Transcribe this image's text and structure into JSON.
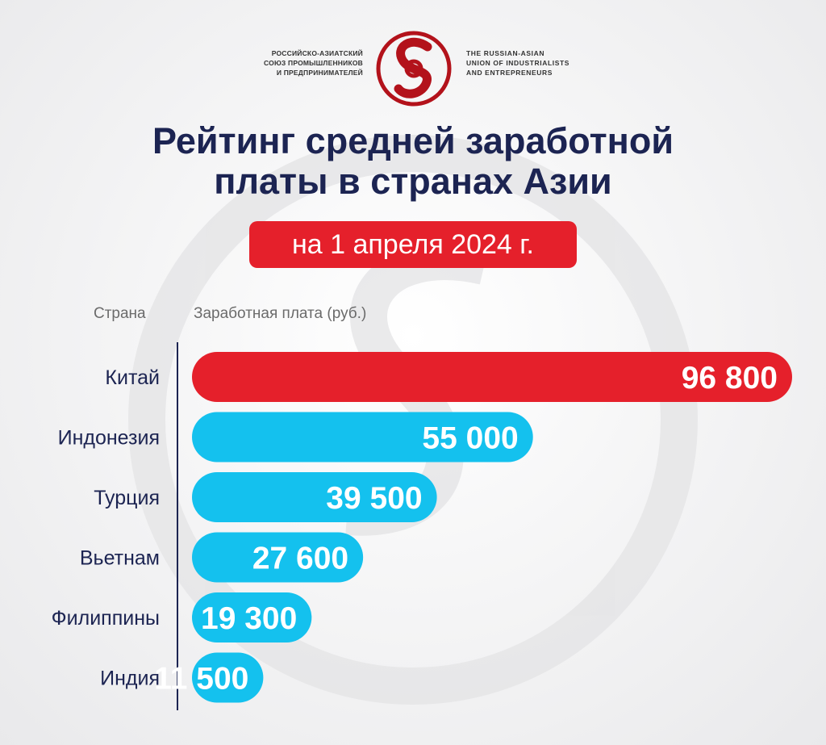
{
  "logo": {
    "ru_lines": [
      "РОССИЙСКО-АЗИАТСКИЙ",
      "СОЮЗ ПРОМЫШЛЕННИКОВ",
      "И ПРЕДПРИНИМАТЕЛЕЙ"
    ],
    "en_lines": [
      "THE RUSSIAN-ASIAN",
      "UNION OF INDUSTRIALISTS",
      "AND ENTREPRENEURS"
    ],
    "color": "#b3121b"
  },
  "title_lines": [
    "Рейтинг средней заработной",
    "платы в странах Азии"
  ],
  "date_badge": "на 1 апреля 2024 г.",
  "colors": {
    "accent_red": "#e5202b",
    "bar_blue": "#14c1ee",
    "text_dark": "#1c2452"
  },
  "chart_data": {
    "type": "bar",
    "orientation": "horizontal",
    "title": "Рейтинг средней заработной платы в странах Азии",
    "xlabel": "Заработная плата (руб.)",
    "ylabel": "Страна",
    "categories": [
      "Китай",
      "Индонезия",
      "Турция",
      "Вьетнам",
      "Филиппины",
      "Индия"
    ],
    "values": [
      96800,
      55000,
      39500,
      27600,
      19300,
      11500
    ],
    "value_labels": [
      "96 800",
      "55 000",
      "39 500",
      "27 600",
      "19 300",
      "11 500"
    ],
    "highlight": "Китай"
  }
}
